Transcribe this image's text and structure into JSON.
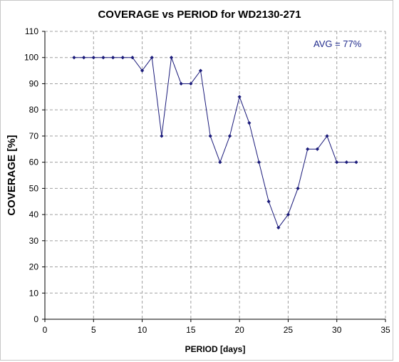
{
  "chart_data": {
    "type": "line",
    "title": "COVERAGE vs PERIOD for WD2130-271",
    "xlabel": "PERIOD [days]",
    "ylabel": "COVERAGE [%]",
    "xlim": [
      0,
      35
    ],
    "ylim": [
      0,
      110
    ],
    "xticks": [
      0,
      5,
      10,
      15,
      20,
      25,
      30,
      35
    ],
    "yticks": [
      0,
      10,
      20,
      30,
      40,
      50,
      60,
      70,
      80,
      90,
      100,
      110
    ],
    "grid": true,
    "annotation": "AVG = 77%",
    "series": [
      {
        "color": "#1a1a7a",
        "x": [
          3,
          4,
          5,
          6,
          7,
          8,
          9,
          10,
          11,
          12,
          13,
          14,
          15,
          16,
          17,
          18,
          19,
          20,
          21,
          22,
          23,
          24,
          25,
          26,
          27,
          28,
          29,
          30,
          31,
          32
        ],
        "y": [
          100,
          100,
          100,
          100,
          100,
          100,
          100,
          95,
          100,
          70,
          100,
          90,
          90,
          95,
          70,
          60,
          70,
          85,
          75,
          60,
          45,
          35,
          40,
          50,
          65,
          65,
          70,
          60,
          60,
          60
        ]
      }
    ]
  }
}
